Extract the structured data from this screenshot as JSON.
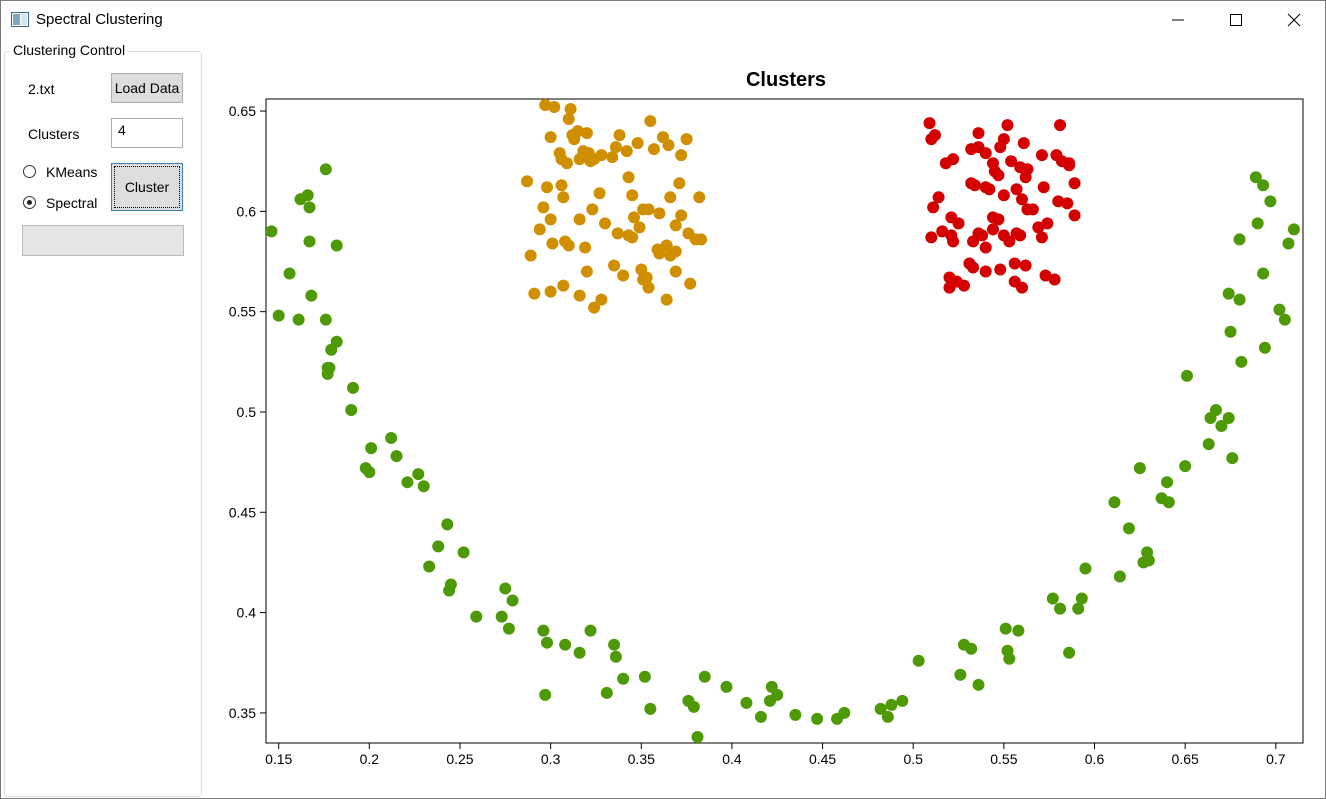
{
  "window": {
    "title": "Spectral Clustering"
  },
  "controls": {
    "group_title": "Clustering Control",
    "file_name": "2.txt",
    "load_button": "Load Data",
    "clusters_label": "Clusters",
    "clusters_value": "4",
    "radio_kmeans": "KMeans",
    "radio_spectral": "Spectral",
    "selected_algorithm": "Spectral",
    "cluster_button": "Cluster",
    "progress": 0
  },
  "chart_data": {
    "type": "scatter",
    "title": "Clusters",
    "xlabel": "",
    "ylabel": "",
    "xlim": [
      0.143,
      0.715
    ],
    "ylim": [
      0.335,
      0.656
    ],
    "xticks": [
      0.15,
      0.2,
      0.25,
      0.3,
      0.35,
      0.4,
      0.45,
      0.5,
      0.55,
      0.6,
      0.65,
      0.7
    ],
    "yticks": [
      0.35,
      0.4,
      0.45,
      0.5,
      0.55,
      0.6,
      0.65
    ],
    "grid": false,
    "legend": "none",
    "series": [
      {
        "color": "#4e9a06",
        "points": [
          [
            0.146,
            0.59
          ],
          [
            0.15,
            0.548
          ],
          [
            0.156,
            0.569
          ],
          [
            0.161,
            0.546
          ],
          [
            0.162,
            0.606
          ],
          [
            0.166,
            0.608
          ],
          [
            0.167,
            0.585
          ],
          [
            0.167,
            0.602
          ],
          [
            0.168,
            0.558
          ],
          [
            0.176,
            0.621
          ],
          [
            0.182,
            0.583
          ],
          [
            0.176,
            0.546
          ],
          [
            0.177,
            0.522
          ],
          [
            0.177,
            0.519
          ],
          [
            0.178,
            0.522
          ],
          [
            0.179,
            0.531
          ],
          [
            0.182,
            0.535
          ],
          [
            0.19,
            0.501
          ],
          [
            0.191,
            0.512
          ],
          [
            0.198,
            0.472
          ],
          [
            0.2,
            0.47
          ],
          [
            0.201,
            0.482
          ],
          [
            0.212,
            0.487
          ],
          [
            0.215,
            0.478
          ],
          [
            0.221,
            0.465
          ],
          [
            0.227,
            0.469
          ],
          [
            0.23,
            0.463
          ],
          [
            0.233,
            0.423
          ],
          [
            0.238,
            0.433
          ],
          [
            0.243,
            0.444
          ],
          [
            0.245,
            0.414
          ],
          [
            0.244,
            0.411
          ],
          [
            0.252,
            0.43
          ],
          [
            0.259,
            0.398
          ],
          [
            0.273,
            0.398
          ],
          [
            0.275,
            0.412
          ],
          [
            0.277,
            0.392
          ],
          [
            0.279,
            0.406
          ],
          [
            0.296,
            0.391
          ],
          [
            0.298,
            0.385
          ],
          [
            0.297,
            0.359
          ],
          [
            0.308,
            0.384
          ],
          [
            0.316,
            0.38
          ],
          [
            0.322,
            0.391
          ],
          [
            0.331,
            0.36
          ],
          [
            0.335,
            0.384
          ],
          [
            0.336,
            0.378
          ],
          [
            0.34,
            0.367
          ],
          [
            0.352,
            0.368
          ],
          [
            0.355,
            0.352
          ],
          [
            0.376,
            0.356
          ],
          [
            0.379,
            0.353
          ],
          [
            0.381,
            0.338
          ],
          [
            0.385,
            0.368
          ],
          [
            0.397,
            0.363
          ],
          [
            0.408,
            0.355
          ],
          [
            0.416,
            0.348
          ],
          [
            0.421,
            0.356
          ],
          [
            0.422,
            0.363
          ],
          [
            0.425,
            0.359
          ],
          [
            0.435,
            0.349
          ],
          [
            0.447,
            0.347
          ],
          [
            0.458,
            0.347
          ],
          [
            0.462,
            0.35
          ],
          [
            0.482,
            0.352
          ],
          [
            0.486,
            0.348
          ],
          [
            0.488,
            0.354
          ],
          [
            0.494,
            0.356
          ],
          [
            0.503,
            0.376
          ],
          [
            0.526,
            0.369
          ],
          [
            0.528,
            0.384
          ],
          [
            0.532,
            0.382
          ],
          [
            0.536,
            0.364
          ],
          [
            0.551,
            0.392
          ],
          [
            0.552,
            0.381
          ],
          [
            0.553,
            0.377
          ],
          [
            0.558,
            0.391
          ],
          [
            0.577,
            0.407
          ],
          [
            0.581,
            0.402
          ],
          [
            0.586,
            0.38
          ],
          [
            0.591,
            0.402
          ],
          [
            0.593,
            0.407
          ],
          [
            0.595,
            0.422
          ],
          [
            0.614,
            0.418
          ],
          [
            0.611,
            0.455
          ],
          [
            0.619,
            0.442
          ],
          [
            0.625,
            0.472
          ],
          [
            0.627,
            0.425
          ],
          [
            0.629,
            0.43
          ],
          [
            0.63,
            0.426
          ],
          [
            0.637,
            0.457
          ],
          [
            0.64,
            0.465
          ],
          [
            0.641,
            0.455
          ],
          [
            0.65,
            0.473
          ],
          [
            0.651,
            0.518
          ],
          [
            0.663,
            0.484
          ],
          [
            0.664,
            0.497
          ],
          [
            0.667,
            0.501
          ],
          [
            0.67,
            0.493
          ],
          [
            0.674,
            0.497
          ],
          [
            0.676,
            0.477
          ],
          [
            0.674,
            0.559
          ],
          [
            0.675,
            0.54
          ],
          [
            0.68,
            0.556
          ],
          [
            0.68,
            0.586
          ],
          [
            0.681,
            0.525
          ],
          [
            0.689,
            0.617
          ],
          [
            0.69,
            0.594
          ],
          [
            0.693,
            0.613
          ],
          [
            0.693,
            0.569
          ],
          [
            0.694,
            0.532
          ],
          [
            0.697,
            0.605
          ],
          [
            0.702,
            0.551
          ],
          [
            0.705,
            0.546
          ],
          [
            0.707,
            0.584
          ],
          [
            0.71,
            0.591
          ]
        ]
      },
      {
        "color": "#d08f00",
        "points": [
          [
            0.297,
            0.653
          ],
          [
            0.302,
            0.652
          ],
          [
            0.311,
            0.651
          ],
          [
            0.3,
            0.637
          ],
          [
            0.306,
            0.626
          ],
          [
            0.305,
            0.629
          ],
          [
            0.309,
            0.624
          ],
          [
            0.312,
            0.638
          ],
          [
            0.313,
            0.636
          ],
          [
            0.315,
            0.64
          ],
          [
            0.316,
            0.626
          ],
          [
            0.318,
            0.63
          ],
          [
            0.32,
            0.639
          ],
          [
            0.321,
            0.629
          ],
          [
            0.322,
            0.625
          ],
          [
            0.324,
            0.626
          ],
          [
            0.31,
            0.646
          ],
          [
            0.32,
            0.629
          ],
          [
            0.328,
            0.628
          ],
          [
            0.334,
            0.627
          ],
          [
            0.336,
            0.632
          ],
          [
            0.338,
            0.638
          ],
          [
            0.342,
            0.63
          ],
          [
            0.348,
            0.634
          ],
          [
            0.355,
            0.645
          ],
          [
            0.357,
            0.631
          ],
          [
            0.362,
            0.637
          ],
          [
            0.365,
            0.633
          ],
          [
            0.372,
            0.628
          ],
          [
            0.375,
            0.636
          ],
          [
            0.287,
            0.615
          ],
          [
            0.298,
            0.612
          ],
          [
            0.306,
            0.613
          ],
          [
            0.307,
            0.607
          ],
          [
            0.323,
            0.601
          ],
          [
            0.327,
            0.609
          ],
          [
            0.343,
            0.617
          ],
          [
            0.345,
            0.608
          ],
          [
            0.354,
            0.601
          ],
          [
            0.36,
            0.599
          ],
          [
            0.366,
            0.607
          ],
          [
            0.371,
            0.614
          ],
          [
            0.382,
            0.607
          ],
          [
            0.294,
            0.591
          ],
          [
            0.3,
            0.596
          ],
          [
            0.308,
            0.585
          ],
          [
            0.31,
            0.583
          ],
          [
            0.301,
            0.584
          ],
          [
            0.319,
            0.582
          ],
          [
            0.337,
            0.589
          ],
          [
            0.343,
            0.588
          ],
          [
            0.345,
            0.587
          ],
          [
            0.346,
            0.597
          ],
          [
            0.349,
            0.592
          ],
          [
            0.351,
            0.601
          ],
          [
            0.359,
            0.581
          ],
          [
            0.364,
            0.583
          ],
          [
            0.369,
            0.58
          ],
          [
            0.376,
            0.589
          ],
          [
            0.38,
            0.586
          ],
          [
            0.383,
            0.586
          ],
          [
            0.291,
            0.559
          ],
          [
            0.289,
            0.578
          ],
          [
            0.3,
            0.56
          ],
          [
            0.307,
            0.563
          ],
          [
            0.316,
            0.558
          ],
          [
            0.32,
            0.57
          ],
          [
            0.324,
            0.552
          ],
          [
            0.328,
            0.556
          ],
          [
            0.335,
            0.573
          ],
          [
            0.34,
            0.568
          ],
          [
            0.35,
            0.571
          ],
          [
            0.353,
            0.567
          ],
          [
            0.354,
            0.562
          ],
          [
            0.364,
            0.556
          ],
          [
            0.366,
            0.578
          ],
          [
            0.369,
            0.57
          ],
          [
            0.377,
            0.564
          ],
          [
            0.372,
            0.598
          ],
          [
            0.33,
            0.594
          ],
          [
            0.316,
            0.596
          ],
          [
            0.296,
            0.602
          ],
          [
            0.351,
            0.566
          ],
          [
            0.36,
            0.579
          ],
          [
            0.369,
            0.593
          ]
        ]
      },
      {
        "color": "#d40000",
        "points": [
          [
            0.509,
            0.644
          ],
          [
            0.51,
            0.636
          ],
          [
            0.512,
            0.638
          ],
          [
            0.518,
            0.624
          ],
          [
            0.522,
            0.626
          ],
          [
            0.532,
            0.631
          ],
          [
            0.536,
            0.639
          ],
          [
            0.536,
            0.632
          ],
          [
            0.54,
            0.629
          ],
          [
            0.544,
            0.624
          ],
          [
            0.545,
            0.62
          ],
          [
            0.548,
            0.632
          ],
          [
            0.55,
            0.636
          ],
          [
            0.552,
            0.643
          ],
          [
            0.554,
            0.625
          ],
          [
            0.559,
            0.622
          ],
          [
            0.561,
            0.634
          ],
          [
            0.563,
            0.621
          ],
          [
            0.571,
            0.628
          ],
          [
            0.579,
            0.628
          ],
          [
            0.581,
            0.643
          ],
          [
            0.582,
            0.625
          ],
          [
            0.586,
            0.623
          ],
          [
            0.586,
            0.624
          ],
          [
            0.511,
            0.602
          ],
          [
            0.514,
            0.607
          ],
          [
            0.521,
            0.597
          ],
          [
            0.532,
            0.614
          ],
          [
            0.534,
            0.613
          ],
          [
            0.54,
            0.612
          ],
          [
            0.542,
            0.611
          ],
          [
            0.547,
            0.618
          ],
          [
            0.55,
            0.608
          ],
          [
            0.557,
            0.611
          ],
          [
            0.562,
            0.617
          ],
          [
            0.56,
            0.606
          ],
          [
            0.572,
            0.612
          ],
          [
            0.58,
            0.605
          ],
          [
            0.585,
            0.604
          ],
          [
            0.589,
            0.614
          ],
          [
            0.51,
            0.587
          ],
          [
            0.516,
            0.59
          ],
          [
            0.521,
            0.588
          ],
          [
            0.525,
            0.594
          ],
          [
            0.533,
            0.585
          ],
          [
            0.536,
            0.589
          ],
          [
            0.538,
            0.588
          ],
          [
            0.54,
            0.582
          ],
          [
            0.544,
            0.597
          ],
          [
            0.547,
            0.596
          ],
          [
            0.55,
            0.588
          ],
          [
            0.553,
            0.585
          ],
          [
            0.557,
            0.589
          ],
          [
            0.563,
            0.601
          ],
          [
            0.566,
            0.601
          ],
          [
            0.569,
            0.592
          ],
          [
            0.571,
            0.587
          ],
          [
            0.574,
            0.594
          ],
          [
            0.589,
            0.598
          ],
          [
            0.52,
            0.567
          ],
          [
            0.52,
            0.562
          ],
          [
            0.524,
            0.565
          ],
          [
            0.528,
            0.563
          ],
          [
            0.531,
            0.574
          ],
          [
            0.533,
            0.572
          ],
          [
            0.548,
            0.571
          ],
          [
            0.556,
            0.565
          ],
          [
            0.556,
            0.574
          ],
          [
            0.56,
            0.562
          ],
          [
            0.562,
            0.573
          ],
          [
            0.573,
            0.568
          ],
          [
            0.578,
            0.566
          ],
          [
            0.522,
            0.585
          ],
          [
            0.544,
            0.591
          ],
          [
            0.559,
            0.588
          ],
          [
            0.54,
            0.57
          ]
        ]
      }
    ]
  }
}
